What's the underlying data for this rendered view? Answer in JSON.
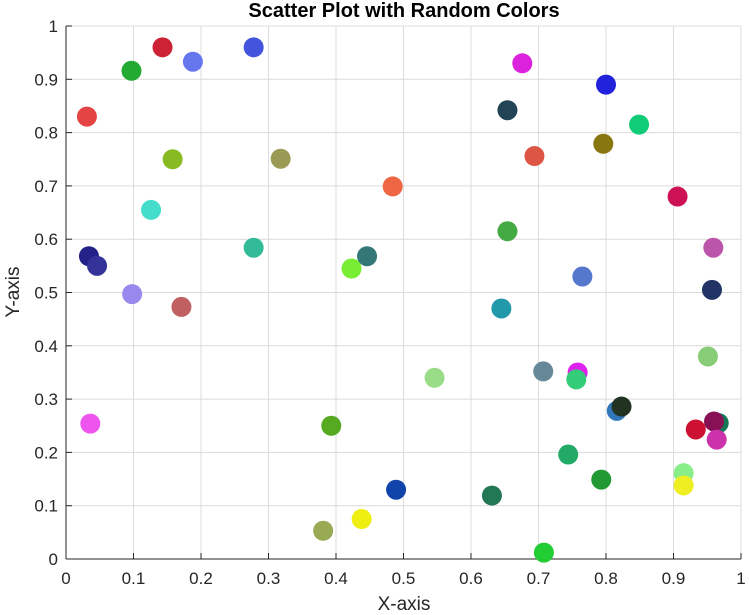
{
  "chart_data": {
    "type": "scatter",
    "title": "Scatter Plot with Random Colors",
    "xlabel": "X-axis",
    "ylabel": "Y-axis",
    "xlim": [
      0,
      1
    ],
    "ylim": [
      0,
      1
    ],
    "grid": true,
    "x_ticks": [
      "0",
      "0.1",
      "0.2",
      "0.3",
      "0.4",
      "0.5",
      "0.6",
      "0.7",
      "0.8",
      "0.9",
      "1"
    ],
    "y_ticks": [
      "0",
      "0.1",
      "0.2",
      "0.3",
      "0.4",
      "0.5",
      "0.6",
      "0.7",
      "0.8",
      "0.9",
      "1"
    ],
    "points": [
      {
        "x": 0.143,
        "y": 0.96,
        "color": "#cc2233"
      },
      {
        "x": 0.278,
        "y": 0.96,
        "color": "#4455dd"
      },
      {
        "x": 0.097,
        "y": 0.916,
        "color": "#22aa33"
      },
      {
        "x": 0.188,
        "y": 0.933,
        "color": "#6677ee"
      },
      {
        "x": 0.031,
        "y": 0.83,
        "color": "#e54444"
      },
      {
        "x": 0.158,
        "y": 0.75,
        "color": "#88bb22"
      },
      {
        "x": 0.318,
        "y": 0.751,
        "color": "#9a9a55"
      },
      {
        "x": 0.126,
        "y": 0.655,
        "color": "#44ddcc"
      },
      {
        "x": 0.034,
        "y": 0.568,
        "color": "#222288"
      },
      {
        "x": 0.046,
        "y": 0.55,
        "color": "#333399"
      },
      {
        "x": 0.278,
        "y": 0.584,
        "color": "#33bb99"
      },
      {
        "x": 0.098,
        "y": 0.497,
        "color": "#9988ee"
      },
      {
        "x": 0.171,
        "y": 0.473,
        "color": "#c06060"
      },
      {
        "x": 0.036,
        "y": 0.254,
        "color": "#ee55ee"
      },
      {
        "x": 0.484,
        "y": 0.699,
        "color": "#ee6644"
      },
      {
        "x": 0.446,
        "y": 0.568,
        "color": "#337777"
      },
      {
        "x": 0.423,
        "y": 0.545,
        "color": "#77ee33"
      },
      {
        "x": 0.546,
        "y": 0.34,
        "color": "#99dd88"
      },
      {
        "x": 0.393,
        "y": 0.25,
        "color": "#55aa22"
      },
      {
        "x": 0.489,
        "y": 0.13,
        "color": "#1144aa"
      },
      {
        "x": 0.381,
        "y": 0.053,
        "color": "#99aa55"
      },
      {
        "x": 0.438,
        "y": 0.075,
        "color": "#eeee11"
      },
      {
        "x": 0.676,
        "y": 0.93,
        "color": "#dd22dd"
      },
      {
        "x": 0.654,
        "y": 0.842,
        "color": "#224455"
      },
      {
        "x": 0.694,
        "y": 0.756,
        "color": "#dd5544"
      },
      {
        "x": 0.654,
        "y": 0.615,
        "color": "#44aa44"
      },
      {
        "x": 0.645,
        "y": 0.47,
        "color": "#2299aa"
      },
      {
        "x": 0.707,
        "y": 0.352,
        "color": "#668899"
      },
      {
        "x": 0.758,
        "y": 0.35,
        "color": "#dd22ee"
      },
      {
        "x": 0.756,
        "y": 0.337,
        "color": "#33cc77"
      },
      {
        "x": 0.744,
        "y": 0.196,
        "color": "#22aa66"
      },
      {
        "x": 0.631,
        "y": 0.119,
        "color": "#227755"
      },
      {
        "x": 0.708,
        "y": 0.012,
        "color": "#22cc33"
      },
      {
        "x": 0.8,
        "y": 0.89,
        "color": "#2222dd"
      },
      {
        "x": 0.849,
        "y": 0.815,
        "color": "#11cc77"
      },
      {
        "x": 0.796,
        "y": 0.779,
        "color": "#887711"
      },
      {
        "x": 0.765,
        "y": 0.53,
        "color": "#5577cc"
      },
      {
        "x": 0.816,
        "y": 0.278,
        "color": "#3377bb"
      },
      {
        "x": 0.823,
        "y": 0.286,
        "color": "#223322"
      },
      {
        "x": 0.793,
        "y": 0.149,
        "color": "#229933"
      },
      {
        "x": 0.906,
        "y": 0.68,
        "color": "#cc1155"
      },
      {
        "x": 0.959,
        "y": 0.584,
        "color": "#bb55aa"
      },
      {
        "x": 0.957,
        "y": 0.505,
        "color": "#223366"
      },
      {
        "x": 0.951,
        "y": 0.38,
        "color": "#88cc77"
      },
      {
        "x": 0.933,
        "y": 0.243,
        "color": "#cc1133"
      },
      {
        "x": 0.967,
        "y": 0.255,
        "color": "#117755"
      },
      {
        "x": 0.96,
        "y": 0.258,
        "color": "#881155"
      },
      {
        "x": 0.964,
        "y": 0.224,
        "color": "#cc33aa"
      },
      {
        "x": 0.915,
        "y": 0.161,
        "color": "#88ee88"
      },
      {
        "x": 0.915,
        "y": 0.138,
        "color": "#eeee22"
      }
    ]
  }
}
